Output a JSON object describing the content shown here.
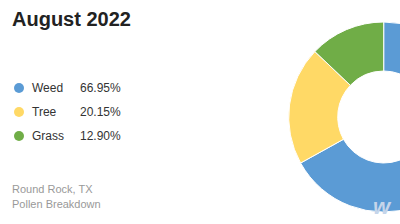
{
  "chart_data": {
    "type": "pie",
    "title": "August 2022",
    "subtitle": [
      "Round Rock, TX",
      "Pollen Breakdown"
    ],
    "categories": [
      "Weed",
      "Tree",
      "Grass"
    ],
    "values": [
      66.95,
      20.15,
      12.9
    ],
    "value_labels": [
      "66.95%",
      "20.15%",
      "12.90%"
    ],
    "colors": [
      "#5B9BD5",
      "#FFD966",
      "#70AD47"
    ],
    "legend": "left",
    "annotations": [
      "w"
    ]
  }
}
